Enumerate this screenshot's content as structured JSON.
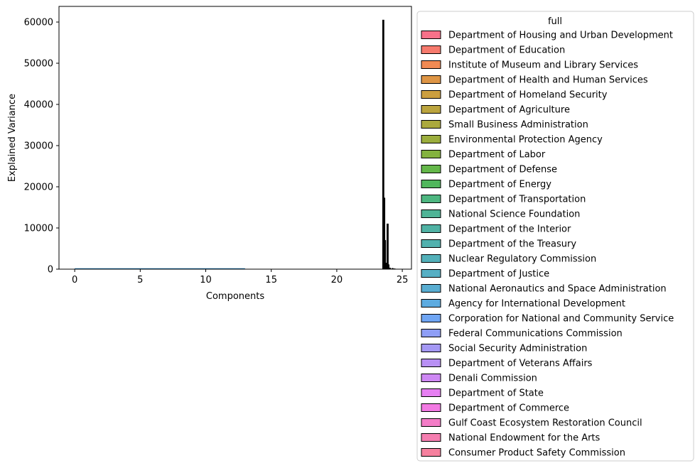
{
  "chart_data": {
    "type": "histogram",
    "xlabel": "Components",
    "ylabel": "Explained Variance",
    "xlim": [
      -1.2,
      25.7
    ],
    "ylim": [
      0,
      63800
    ],
    "xticks": [
      0,
      5,
      10,
      15,
      20,
      25
    ],
    "yticks": [
      0,
      10000,
      20000,
      30000,
      40000,
      50000,
      60000
    ],
    "grid": false,
    "baseline_line": {
      "x": [
        0,
        13
      ],
      "y": [
        0,
        0
      ],
      "color": "#1f77b4"
    },
    "bars": [
      {
        "x": 23.55,
        "y": 60500
      },
      {
        "x": 23.62,
        "y": 17300
      },
      {
        "x": 23.68,
        "y": 7000
      },
      {
        "x": 23.74,
        "y": 1500
      },
      {
        "x": 23.8,
        "y": 600
      },
      {
        "x": 23.88,
        "y": 11000
      },
      {
        "x": 23.94,
        "y": 1100
      },
      {
        "x": 24.05,
        "y": 300
      },
      {
        "x": 24.25,
        "y": 200
      },
      {
        "x": 24.4,
        "y": 100
      }
    ],
    "legend": {
      "title": "full",
      "placement": "outside-right",
      "entries": [
        {
          "label": "Department of Housing and Urban Development",
          "color": "#f77189"
        },
        {
          "label": "Department of Education",
          "color": "#f67a6d"
        },
        {
          "label": "Institute of Museum and Library Services",
          "color": "#f18a53"
        },
        {
          "label": "Department of Health and Human Services",
          "color": "#de9545"
        },
        {
          "label": "Department of Homeland Security",
          "color": "#cc9f3f"
        },
        {
          "label": "Department of Agriculture",
          "color": "#bba43e"
        },
        {
          "label": "Small Business Administration",
          "color": "#aba93d"
        },
        {
          "label": "Environmental Protection Agency",
          "color": "#9bad3d"
        },
        {
          "label": "Department of Labor",
          "color": "#84b23e"
        },
        {
          "label": "Department of Defense",
          "color": "#64b749"
        },
        {
          "label": "Department of Energy",
          "color": "#50b75c"
        },
        {
          "label": "Department of Transportation",
          "color": "#4db680"
        },
        {
          "label": "National Science Foundation",
          "color": "#4fb496"
        },
        {
          "label": "Department of the Interior",
          "color": "#50b2a4"
        },
        {
          "label": "Department of the Treasury",
          "color": "#51b1ae"
        },
        {
          "label": "Nuclear Regulatory Commission",
          "color": "#53b0b9"
        },
        {
          "label": "Department of Justice",
          "color": "#56afc4"
        },
        {
          "label": "National Aeronautics and Space Administration",
          "color": "#59add1"
        },
        {
          "label": "Agency for International Development",
          "color": "#5dabe0"
        },
        {
          "label": "Corporation for National and Community Service",
          "color": "#6fa5f3"
        },
        {
          "label": "Federal Communications Commission",
          "color": "#8e9ef6"
        },
        {
          "label": "Social Security Administration",
          "color": "#a498f4"
        },
        {
          "label": "Department of Veterans Affairs",
          "color": "#b890f4"
        },
        {
          "label": "Denali Commission",
          "color": "#ce88f4"
        },
        {
          "label": "Department of State",
          "color": "#e67ff2"
        },
        {
          "label": "Department of Commerce",
          "color": "#f27ae3"
        },
        {
          "label": "Gulf Coast Ecosystem Restoration Council",
          "color": "#f47cc7"
        },
        {
          "label": "National Endowment for the Arts",
          "color": "#f57eb0"
        },
        {
          "label": "Consumer Product Safety Commission",
          "color": "#f6809e"
        }
      ]
    }
  }
}
